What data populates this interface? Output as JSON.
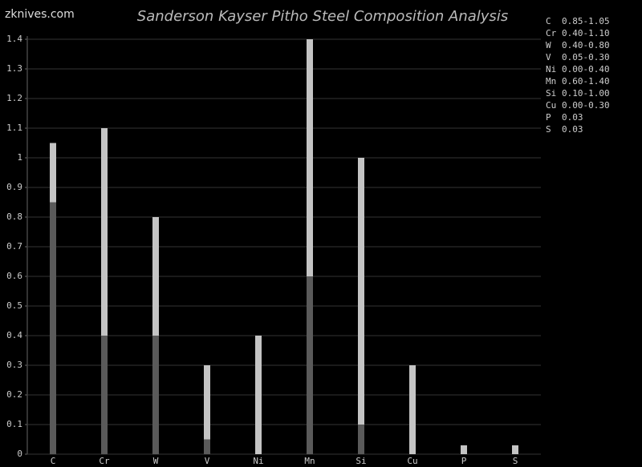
{
  "watermark": "zknives.com",
  "chart_data": {
    "type": "range-bar",
    "title": "Sanderson Kayser Pitho Steel Composition Analysis",
    "categories": [
      "C",
      "Cr",
      "W",
      "V",
      "Ni",
      "Mn",
      "Si",
      "Cu",
      "P",
      "S"
    ],
    "series": [
      {
        "name": "min",
        "color": "#5a5a5a",
        "values": [
          0.85,
          0.4,
          0.4,
          0.05,
          0.0,
          0.6,
          0.1,
          0.0,
          0,
          0
        ]
      },
      {
        "name": "max",
        "color": "#c4c4c4",
        "values": [
          1.05,
          1.1,
          0.8,
          0.3,
          0.4,
          1.4,
          1.0,
          0.3,
          0.03,
          0.03
        ]
      }
    ],
    "legend_labels": [
      "0.85-1.05",
      "0.40-1.10",
      "0.40-0.80",
      "0.05-0.30",
      "0.00-0.40",
      "0.60-1.40",
      "0.10-1.00",
      "0.00-0.30",
      "0.03",
      "0.03"
    ],
    "ylim": [
      0,
      1.4
    ],
    "yticks": [
      0,
      0.1,
      0.2,
      0.3,
      0.4,
      0.5,
      0.6,
      0.7,
      0.8,
      0.9,
      1,
      1.1,
      1.2,
      1.3,
      1.4
    ],
    "grid": true,
    "legend_position": "right"
  }
}
